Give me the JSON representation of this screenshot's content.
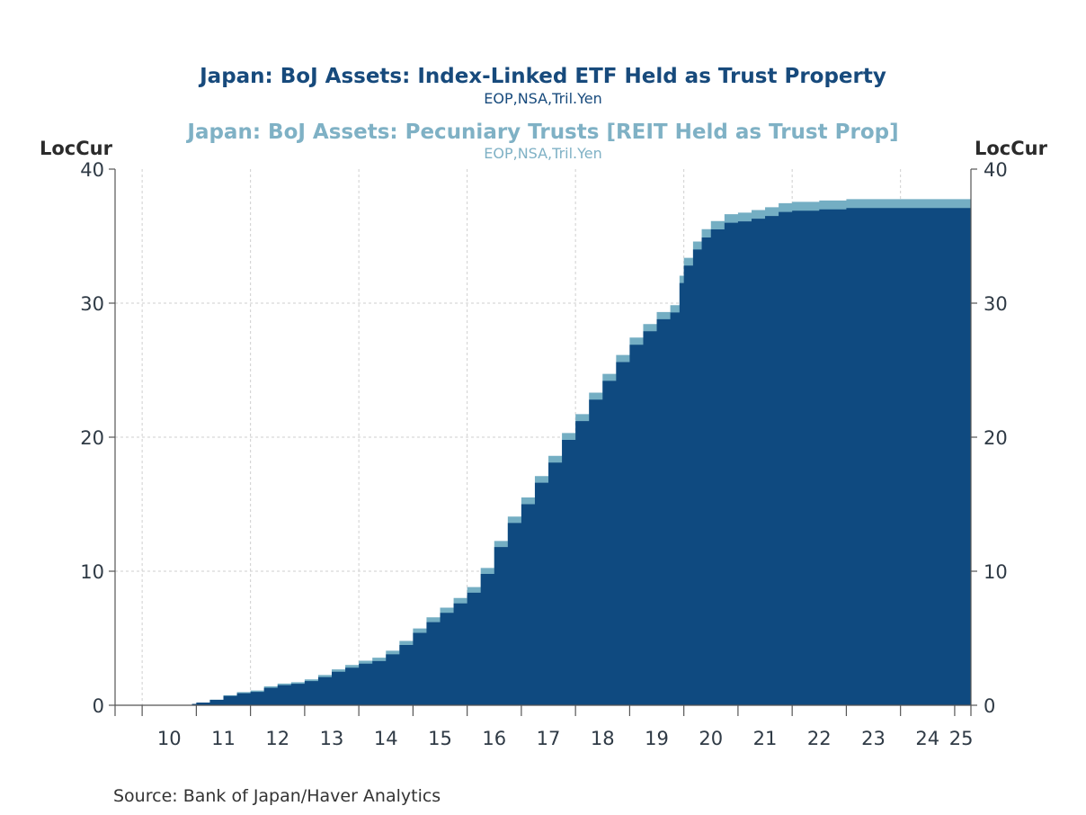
{
  "colors": {
    "etf": "#0f4a80",
    "reit": "#74aec3",
    "title_etf": "#174a7c",
    "title_reit": "#7fb1c5",
    "grid": "#cfcfcf",
    "axis": "#555555"
  },
  "chart_data": {
    "type": "area",
    "stacked": true,
    "step": true,
    "title": "Japan: BoJ Assets: Index-Linked ETF Held as Trust Property",
    "subtitle": "EOP,NSA,Tril.Yen",
    "title2": "Japan: BoJ Assets: Pecuniary Trusts [REIT Held as Trust Prop]",
    "subtitle2": "EOP,NSA,Tril.Yen",
    "ylabel_left": "LocCur",
    "ylabel_right": "LocCur",
    "ylim": [
      0,
      40
    ],
    "yticks": [
      "0",
      "10",
      "20",
      "30",
      "40"
    ],
    "xlim": [
      2009.5,
      2025.3
    ],
    "xtick_labels": [
      "10",
      "11",
      "12",
      "13",
      "14",
      "15",
      "16",
      "17",
      "18",
      "19",
      "20",
      "21",
      "22",
      "23",
      "24",
      "25"
    ],
    "grid": true,
    "source": "Source:  Bank of Japan/Haver Analytics",
    "x": [
      2010.92,
      2011.0,
      2011.25,
      2011.5,
      2011.75,
      2012.0,
      2012.25,
      2012.5,
      2012.75,
      2013.0,
      2013.25,
      2013.5,
      2013.75,
      2014.0,
      2014.25,
      2014.5,
      2014.75,
      2015.0,
      2015.25,
      2015.5,
      2015.75,
      2016.0,
      2016.25,
      2016.5,
      2016.75,
      2017.0,
      2017.25,
      2017.5,
      2017.75,
      2018.0,
      2018.25,
      2018.5,
      2018.75,
      2019.0,
      2019.25,
      2019.5,
      2019.75,
      2019.92,
      2020.0,
      2020.17,
      2020.33,
      2020.5,
      2020.75,
      2021.0,
      2021.25,
      2021.5,
      2021.75,
      2022.0,
      2022.5,
      2023.0,
      2023.5,
      2024.0,
      2024.5,
      2025.0,
      2025.3
    ],
    "series": [
      {
        "name": "Japan: BoJ Assets: Index-Linked ETF Held as Trust Property",
        "values": [
          0.1,
          0.2,
          0.4,
          0.7,
          0.9,
          1.0,
          1.3,
          1.5,
          1.6,
          1.8,
          2.1,
          2.5,
          2.8,
          3.1,
          3.3,
          3.8,
          4.5,
          5.4,
          6.2,
          6.9,
          7.6,
          8.4,
          9.8,
          11.8,
          13.6,
          15.0,
          16.6,
          18.1,
          19.8,
          21.2,
          22.8,
          24.2,
          25.6,
          26.9,
          27.9,
          28.8,
          29.3,
          31.5,
          32.8,
          34.0,
          34.9,
          35.5,
          36.0,
          36.1,
          36.3,
          36.5,
          36.8,
          36.9,
          37.0,
          37.1,
          37.1,
          37.1,
          37.1,
          37.1,
          37.1
        ]
      },
      {
        "name": "Japan: BoJ Assets: Pecuniary Trusts [REIT Held as Trust Prop]",
        "values": [
          0.0,
          0.0,
          0.02,
          0.05,
          0.08,
          0.1,
          0.11,
          0.12,
          0.12,
          0.13,
          0.16,
          0.18,
          0.2,
          0.22,
          0.25,
          0.27,
          0.3,
          0.33,
          0.36,
          0.38,
          0.4,
          0.42,
          0.44,
          0.46,
          0.48,
          0.5,
          0.5,
          0.51,
          0.51,
          0.52,
          0.52,
          0.52,
          0.53,
          0.53,
          0.54,
          0.54,
          0.55,
          0.55,
          0.58,
          0.6,
          0.62,
          0.62,
          0.64,
          0.65,
          0.65,
          0.66,
          0.66,
          0.66,
          0.66,
          0.66,
          0.66,
          0.66,
          0.66,
          0.66,
          0.66
        ]
      }
    ]
  }
}
